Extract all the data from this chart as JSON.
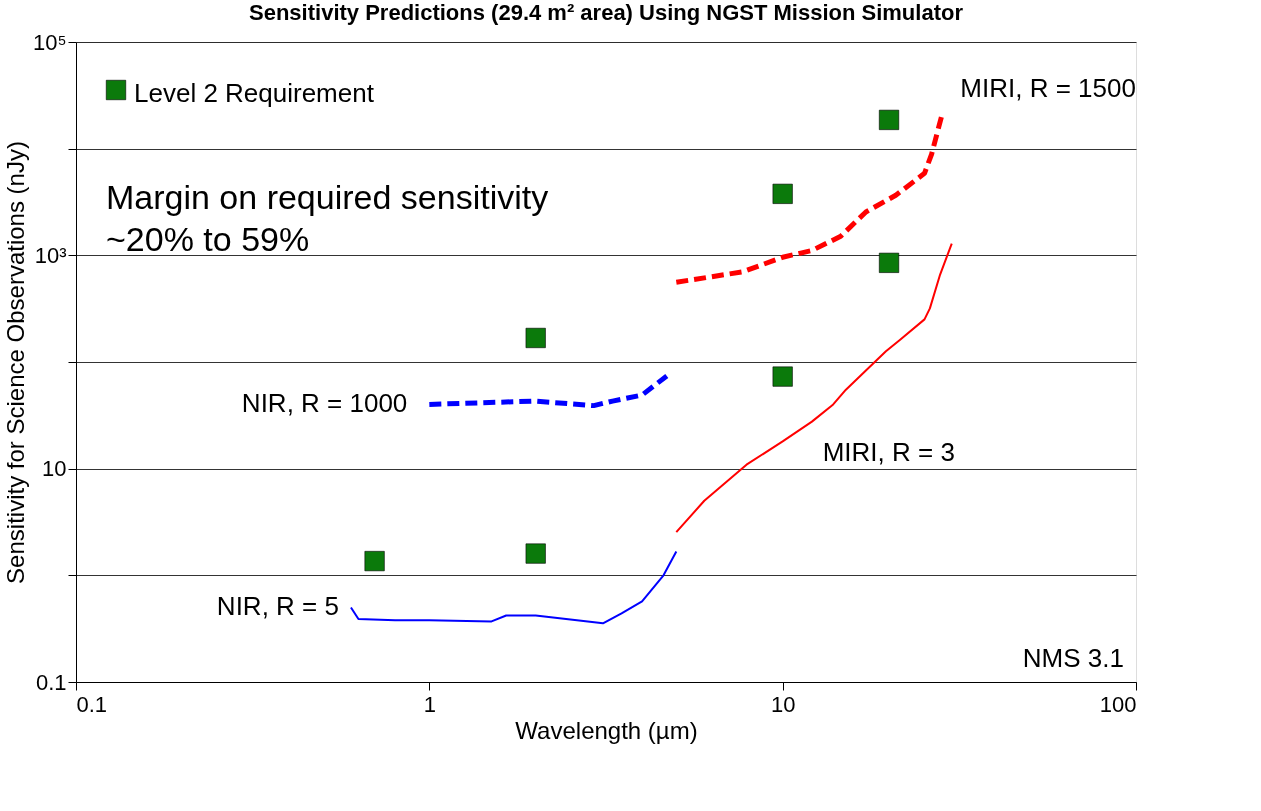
{
  "chart_data": {
    "type": "line",
    "title": "Sensitivity Predictions (29.4 m² area) Using NGST Mission Simulator",
    "xlabel": "Wavelength (µm)",
    "ylabel": "Sensitivity for Science Observations (nJy)",
    "log": "xy",
    "grid": "y",
    "legend": "top left",
    "xlim": [
      0.1,
      100
    ],
    "xticks": [
      0.1,
      1,
      10,
      100
    ],
    "ylim": [
      0.1,
      100000
    ],
    "yticks": [
      0.1,
      {
        "value": 1,
        "label": null
      },
      10,
      {
        "value": 100,
        "label": null
      },
      {
        "value": 1000,
        "label": "10³"
      },
      {
        "value": 10000,
        "label": null
      },
      {
        "value": 100000,
        "label": "10⁵"
      }
    ],
    "series": [
      {
        "name": "NIR, R = 5",
        "color": "#0000ff",
        "line_style": "solid",
        "x": [
          0.6,
          0.63,
          0.8,
          1.0,
          1.5,
          1.65,
          2.0,
          3.1,
          3.5,
          4.0,
          4.6,
          5.0
        ],
        "values": [
          0.5,
          0.39,
          0.38,
          0.38,
          0.37,
          0.42,
          0.42,
          0.355,
          0.44,
          0.57,
          1.0,
          1.67
        ]
      },
      {
        "name": "NIR, R = 1000",
        "color": "#0000ff",
        "line_style": "dashed",
        "x": [
          1.0,
          1.98,
          2.92,
          3.3,
          4.0,
          4.7
        ],
        "values": [
          40,
          43,
          39,
          43,
          49,
          74
        ]
      },
      {
        "name": "MIRI, R = 3",
        "color": "#ff0000",
        "line_style": "solid",
        "x": [
          5.0,
          6.0,
          7.9,
          10,
          12.1,
          13.9,
          15.1,
          19.6,
          21.5,
          25.2,
          26.1,
          27.9,
          30.1
        ],
        "values": [
          2.54,
          5.0,
          10.9,
          18,
          27.6,
          40,
          55,
          126,
          162,
          251,
          318,
          660,
          1290
        ]
      },
      {
        "name": "MIRI, R = 1500",
        "color": "#ff0000",
        "line_style": "dashed",
        "x": [
          5.0,
          6.3,
          7.7,
          10,
          12.1,
          14.6,
          17.2,
          20.9,
          25.2,
          26.4,
          27.5,
          28.3
        ],
        "values": [
          560,
          630,
          700,
          960,
          1110,
          1510,
          2550,
          3660,
          5870,
          8900,
          14900,
          21300
        ]
      },
      {
        "name": "Level 2 Requirement",
        "type": "scatter",
        "marker": "square",
        "color": "#0b7a0b",
        "x": [
          0.7,
          2.0,
          2.0,
          10,
          10,
          20,
          20
        ],
        "values": [
          1.36,
          1.6,
          168,
          3770,
          73,
          18600,
          850
        ]
      }
    ],
    "annotations": [
      "Margin on required sensitivity\n~20% to 59%",
      "NMS 3.1"
    ]
  }
}
